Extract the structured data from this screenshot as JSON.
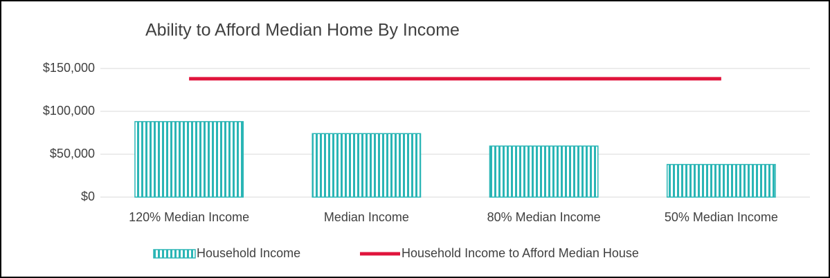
{
  "chart_data": {
    "type": "bar",
    "title": "Ability to Afford Median Home By Income",
    "categories": [
      "120% Median Income",
      "Median Income",
      "80% Median Income",
      "50% Median Income"
    ],
    "series": [
      {
        "name": "Household Income",
        "type": "bar",
        "color": "#2ab5b5",
        "values": [
          88000,
          74000,
          59500,
          38000
        ]
      },
      {
        "name": "Household Income to Afford Median House",
        "type": "line",
        "color": "#e0143c",
        "values": [
          138000,
          138000,
          138000,
          138000
        ]
      }
    ],
    "ylim": [
      0,
      150000
    ],
    "yticks": [
      {
        "value": 0,
        "label": "$0"
      },
      {
        "value": 50000,
        "label": "$50,000"
      },
      {
        "value": 100000,
        "label": "$100,000"
      },
      {
        "value": 150000,
        "label": "$150,000"
      }
    ],
    "grid": true,
    "legend": "bottom"
  }
}
